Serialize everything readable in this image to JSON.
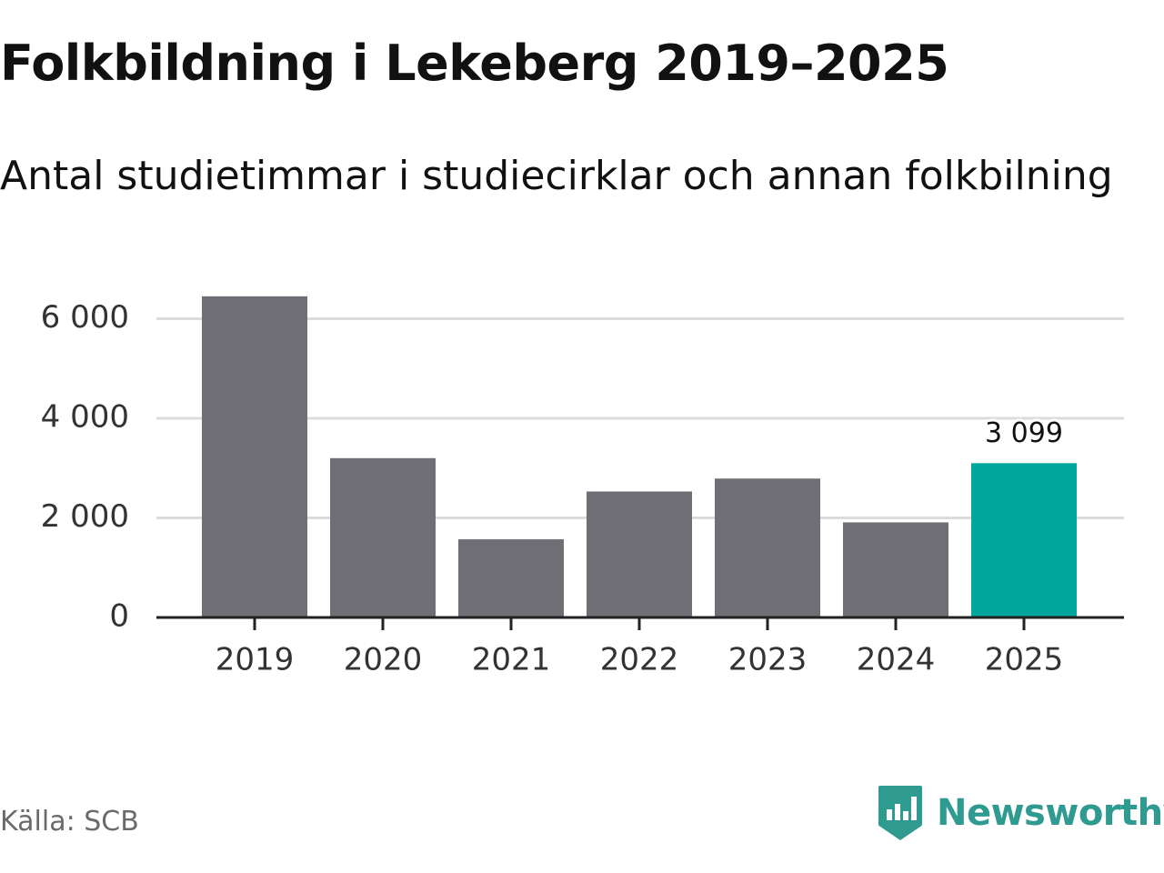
{
  "header": {
    "title": "Folkbildning i Lekeberg 2019–2025",
    "subtitle": "Antal studietimmar i studiecirklar och annan folkbilning"
  },
  "footer": {
    "source": "Källa: SCB",
    "brand": "Newsworthy",
    "brand_icon": "newsworthy-logo-icon"
  },
  "colors": {
    "bar": "#6f6e75",
    "highlight": "#00a59b",
    "grid": "#dcdcdc",
    "axis": "#222222",
    "brand": "#2f9a8f"
  },
  "chart_data": {
    "type": "bar",
    "title": "Folkbildning i Lekeberg 2019–2025",
    "subtitle": "Antal studietimmar i studiecirklar och annan folkbilning",
    "xlabel": "",
    "ylabel": "",
    "categories": [
      "2019",
      "2020",
      "2021",
      "2022",
      "2023",
      "2024",
      "2025"
    ],
    "values": [
      6450,
      3200,
      1570,
      2530,
      2790,
      1910,
      3099
    ],
    "highlight_index": 6,
    "data_labels": [
      {
        "index": 6,
        "text": "3 099"
      }
    ],
    "ylim": [
      0,
      6500
    ],
    "yticks": [
      0,
      2000,
      4000,
      6000
    ],
    "ytick_labels": [
      "0",
      "2 000",
      "4 000",
      "6 000"
    ],
    "grid": true
  }
}
